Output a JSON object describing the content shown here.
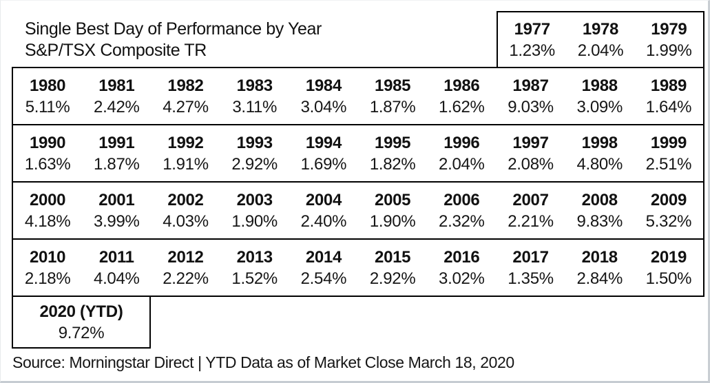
{
  "header": {
    "title": "Single Best Day of Performance by Year",
    "subtitle": "S&P/TSX Composite TR"
  },
  "table": {
    "header": {
      "years": [
        "1977",
        "1978",
        "1979"
      ],
      "values": [
        "1.23%",
        "2.04%",
        "1.99%"
      ]
    },
    "rows": [
      {
        "years": [
          "1980",
          "1981",
          "1982",
          "1983",
          "1984",
          "1985",
          "1986",
          "1987",
          "1988",
          "1989"
        ],
        "values": [
          "5.11%",
          "2.42%",
          "4.27%",
          "3.11%",
          "3.04%",
          "1.87%",
          "1.62%",
          "9.03%",
          "3.09%",
          "1.64%"
        ]
      },
      {
        "years": [
          "1990",
          "1991",
          "1992",
          "1993",
          "1994",
          "1995",
          "1996",
          "1997",
          "1998",
          "1999"
        ],
        "values": [
          "1.63%",
          "1.87%",
          "1.91%",
          "2.92%",
          "1.69%",
          "1.82%",
          "2.04%",
          "2.08%",
          "4.80%",
          "2.51%"
        ]
      },
      {
        "years": [
          "2000",
          "2001",
          "2002",
          "2003",
          "2004",
          "2005",
          "2006",
          "2007",
          "2008",
          "2009"
        ],
        "values": [
          "4.18%",
          "3.99%",
          "4.03%",
          "1.90%",
          "2.40%",
          "1.90%",
          "2.32%",
          "2.21%",
          "9.83%",
          "5.32%"
        ]
      },
      {
        "years": [
          "2010",
          "2011",
          "2012",
          "2013",
          "2014",
          "2015",
          "2016",
          "2017",
          "2018",
          "2019"
        ],
        "values": [
          "2.18%",
          "4.04%",
          "2.22%",
          "1.52%",
          "2.54%",
          "2.92%",
          "3.02%",
          "1.35%",
          "2.84%",
          "1.50%"
        ]
      }
    ],
    "ytd": {
      "year": "2020 (YTD)",
      "value": "9.72%"
    }
  },
  "footer": {
    "source": "Source: Morningstar Direct | YTD Data as of Market Close March 18, 2020"
  },
  "colors": {
    "background": "#ffffff",
    "text": "#111111",
    "table_border": "#000000",
    "frame_edge": "#c9ced3"
  },
  "chart_data": {
    "type": "table",
    "title": "Single Best Day of Performance by Year",
    "subtitle": "S&P/TSX Composite TR",
    "unit": "%",
    "x": [
      "1977",
      "1978",
      "1979",
      "1980",
      "1981",
      "1982",
      "1983",
      "1984",
      "1985",
      "1986",
      "1987",
      "1988",
      "1989",
      "1990",
      "1991",
      "1992",
      "1993",
      "1994",
      "1995",
      "1996",
      "1997",
      "1998",
      "1999",
      "2000",
      "2001",
      "2002",
      "2003",
      "2004",
      "2005",
      "2006",
      "2007",
      "2008",
      "2009",
      "2010",
      "2011",
      "2012",
      "2013",
      "2014",
      "2015",
      "2016",
      "2017",
      "2018",
      "2019",
      "2020 (YTD)"
    ],
    "values": [
      1.23,
      2.04,
      1.99,
      5.11,
      2.42,
      4.27,
      3.11,
      3.04,
      1.87,
      1.62,
      9.03,
      3.09,
      1.64,
      1.63,
      1.87,
      1.91,
      2.92,
      1.69,
      1.82,
      2.04,
      2.08,
      4.8,
      2.51,
      4.18,
      3.99,
      4.03,
      1.9,
      2.4,
      1.9,
      2.32,
      2.21,
      9.83,
      5.32,
      2.18,
      4.04,
      2.22,
      1.52,
      2.54,
      2.92,
      3.02,
      1.35,
      2.84,
      1.5,
      9.72
    ],
    "source": "Morningstar Direct",
    "as_of": "Market Close March 18, 2020"
  }
}
